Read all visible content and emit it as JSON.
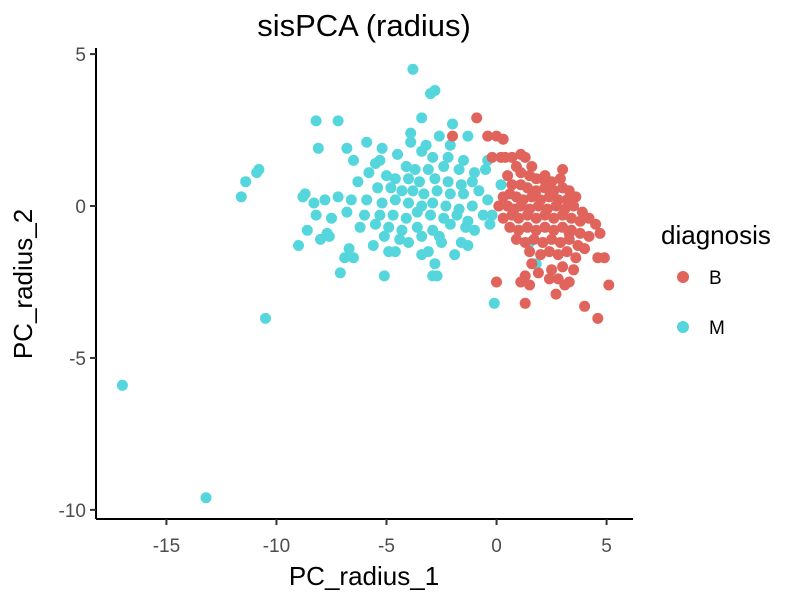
{
  "chart_data": {
    "type": "scatter",
    "title": "sisPCA (radius)",
    "xlabel": "PC_radius_1",
    "ylabel": "PC_radius_2",
    "xlim": [
      -18.2,
      6.2
    ],
    "ylim": [
      -10.3,
      5.2
    ],
    "x_ticks": [
      -15,
      -10,
      -5,
      0,
      5
    ],
    "y_ticks": [
      5,
      0,
      -5,
      -10
    ],
    "x_tick_labels": [
      "-15",
      "-10",
      "-5",
      "0",
      "5"
    ],
    "y_tick_labels": [
      "5",
      "0",
      "-5",
      "-10"
    ],
    "grid": false,
    "legend": {
      "title": "diagnosis",
      "position": "right"
    },
    "series": [
      {
        "name": "B",
        "color": "#E0635C",
        "points": [
          [
            -0.9,
            2.9
          ],
          [
            -2.0,
            2.3
          ],
          [
            0.0,
            2.3
          ],
          [
            -0.4,
            2.3
          ],
          [
            0.3,
            2.2
          ],
          [
            -0.2,
            1.6
          ],
          [
            0.2,
            1.6
          ],
          [
            0.4,
            1.6
          ],
          [
            0.7,
            1.6
          ],
          [
            1.3,
            1.6
          ],
          [
            1.1,
            1.7
          ],
          [
            0.9,
            1.3
          ],
          [
            1.6,
            1.3
          ],
          [
            3.0,
            1.2
          ],
          [
            1.1,
            1.1
          ],
          [
            1.5,
            1.0
          ],
          [
            1.8,
            0.9
          ],
          [
            2.1,
            0.9
          ],
          [
            2.5,
            0.8
          ],
          [
            0.5,
            1.0
          ],
          [
            0.7,
            0.7
          ],
          [
            1.1,
            0.7
          ],
          [
            1.4,
            0.6
          ],
          [
            1.8,
            0.5
          ],
          [
            2.2,
            0.6
          ],
          [
            2.6,
            0.5
          ],
          [
            3.0,
            0.6
          ],
          [
            3.3,
            0.5
          ],
          [
            0.3,
            0.3
          ],
          [
            0.6,
            0.4
          ],
          [
            0.9,
            0.3
          ],
          [
            1.2,
            0.2
          ],
          [
            1.6,
            0.3
          ],
          [
            2.0,
            0.2
          ],
          [
            2.4,
            0.3
          ],
          [
            2.8,
            0.2
          ],
          [
            3.2,
            0.2
          ],
          [
            3.6,
            0.3
          ],
          [
            0.1,
            0.0
          ],
          [
            0.5,
            0.0
          ],
          [
            0.8,
            -0.1
          ],
          [
            1.1,
            0.0
          ],
          [
            1.5,
            -0.1
          ],
          [
            1.9,
            0.0
          ],
          [
            2.3,
            -0.1
          ],
          [
            2.7,
            0.0
          ],
          [
            3.1,
            -0.1
          ],
          [
            3.5,
            0.0
          ],
          [
            3.9,
            -0.2
          ],
          [
            0.3,
            -0.4
          ],
          [
            0.7,
            -0.3
          ],
          [
            1.0,
            -0.4
          ],
          [
            1.4,
            -0.3
          ],
          [
            1.8,
            -0.4
          ],
          [
            2.2,
            -0.3
          ],
          [
            2.6,
            -0.4
          ],
          [
            3.0,
            -0.3
          ],
          [
            3.4,
            -0.4
          ],
          [
            3.8,
            -0.5
          ],
          [
            4.2,
            -0.4
          ],
          [
            0.6,
            -0.7
          ],
          [
            1.0,
            -0.8
          ],
          [
            1.4,
            -0.7
          ],
          [
            1.8,
            -0.8
          ],
          [
            2.2,
            -0.7
          ],
          [
            2.6,
            -0.8
          ],
          [
            3.0,
            -0.7
          ],
          [
            3.4,
            -0.8
          ],
          [
            3.8,
            -0.9
          ],
          [
            0.9,
            -1.1
          ],
          [
            1.3,
            -1.2
          ],
          [
            1.7,
            -1.1
          ],
          [
            2.1,
            -1.2
          ],
          [
            2.5,
            -1.1
          ],
          [
            2.9,
            -1.2
          ],
          [
            3.3,
            -1.1
          ],
          [
            3.7,
            -1.3
          ],
          [
            4.2,
            -1.0
          ],
          [
            4.5,
            -0.6
          ],
          [
            1.5,
            -1.5
          ],
          [
            2.0,
            -1.6
          ],
          [
            2.4,
            -1.5
          ],
          [
            2.8,
            -1.6
          ],
          [
            3.2,
            -1.5
          ],
          [
            3.6,
            -1.7
          ],
          [
            4.0,
            -1.4
          ],
          [
            4.6,
            -1.7
          ],
          [
            4.7,
            -0.9
          ],
          [
            4.9,
            -1.7
          ],
          [
            1.9,
            -2.2
          ],
          [
            2.5,
            -2.1
          ],
          [
            3.0,
            -2.0
          ],
          [
            3.5,
            -2.1
          ],
          [
            1.3,
            -2.3
          ],
          [
            1.1,
            -2.5
          ],
          [
            2.4,
            -2.4
          ],
          [
            2.8,
            -2.4
          ],
          [
            3.3,
            -2.5
          ],
          [
            0.0,
            -2.5
          ],
          [
            1.5,
            -2.6
          ],
          [
            2.7,
            -2.9
          ],
          [
            3.1,
            -2.6
          ],
          [
            5.1,
            -2.6
          ],
          [
            1.3,
            -3.2
          ],
          [
            4.0,
            -3.3
          ],
          [
            4.6,
            -3.7
          ],
          [
            2.2,
            1.0
          ],
          [
            2.9,
            0.9
          ],
          [
            3.3,
            -0.9
          ],
          [
            1.6,
            -1.9
          ]
        ]
      },
      {
        "name": "M",
        "color": "#55D6DC",
        "points": [
          [
            -3.8,
            4.5
          ],
          [
            -2.8,
            3.8
          ],
          [
            -3.0,
            3.7
          ],
          [
            -8.2,
            2.8
          ],
          [
            -7.2,
            2.8
          ],
          [
            -3.4,
            2.9
          ],
          [
            -2.0,
            2.7
          ],
          [
            -3.9,
            2.4
          ],
          [
            -5.9,
            2.1
          ],
          [
            -2.6,
            2.3
          ],
          [
            -1.3,
            2.3
          ],
          [
            -8.1,
            1.9
          ],
          [
            -6.8,
            1.9
          ],
          [
            -5.2,
            1.9
          ],
          [
            -4.5,
            1.7
          ],
          [
            -3.4,
            1.8
          ],
          [
            -2.9,
            1.6
          ],
          [
            -2.2,
            1.6
          ],
          [
            -1.5,
            1.5
          ],
          [
            -6.5,
            1.5
          ],
          [
            -5.5,
            1.4
          ],
          [
            -4.1,
            1.3
          ],
          [
            -3.7,
            1.2
          ],
          [
            -3.1,
            1.2
          ],
          [
            -2.4,
            1.3
          ],
          [
            -1.7,
            1.2
          ],
          [
            -1.0,
            1.1
          ],
          [
            -0.5,
            1.2
          ],
          [
            -10.8,
            1.2
          ],
          [
            -10.9,
            1.1
          ],
          [
            -5.8,
            1.1
          ],
          [
            -5.0,
            1.0
          ],
          [
            -4.6,
            0.9
          ],
          [
            -4.0,
            0.9
          ],
          [
            -3.5,
            0.8
          ],
          [
            -2.8,
            0.9
          ],
          [
            -2.2,
            0.8
          ],
          [
            -1.6,
            0.7
          ],
          [
            -1.1,
            0.8
          ],
          [
            -6.3,
            0.8
          ],
          [
            -5.4,
            0.6
          ],
          [
            -4.8,
            0.6
          ],
          [
            -4.3,
            0.5
          ],
          [
            -3.8,
            0.5
          ],
          [
            -3.3,
            0.4
          ],
          [
            -2.7,
            0.5
          ],
          [
            -2.1,
            0.4
          ],
          [
            -1.5,
            0.4
          ],
          [
            -0.8,
            0.5
          ],
          [
            -11.4,
            0.8
          ],
          [
            -8.7,
            0.4
          ],
          [
            -8.8,
            0.3
          ],
          [
            -7.2,
            0.3
          ],
          [
            -6.6,
            0.2
          ],
          [
            -5.9,
            0.2
          ],
          [
            -5.2,
            0.1
          ],
          [
            -4.6,
            0.2
          ],
          [
            -4.0,
            0.1
          ],
          [
            -3.4,
            0.0
          ],
          [
            -2.9,
            0.1
          ],
          [
            -2.3,
            0.0
          ],
          [
            -1.7,
            -0.1
          ],
          [
            -1.1,
            0.0
          ],
          [
            -0.4,
            0.2
          ],
          [
            -11.6,
            0.3
          ],
          [
            -8.3,
            0.1
          ],
          [
            -7.8,
            0.2
          ],
          [
            -6.8,
            -0.2
          ],
          [
            -6.0,
            -0.3
          ],
          [
            -5.3,
            -0.3
          ],
          [
            -4.7,
            -0.3
          ],
          [
            -4.1,
            -0.4
          ],
          [
            -3.6,
            -0.2
          ],
          [
            -3.0,
            -0.3
          ],
          [
            -2.4,
            -0.4
          ],
          [
            -1.8,
            -0.3
          ],
          [
            -1.3,
            -0.5
          ],
          [
            -0.6,
            -0.3
          ],
          [
            -8.2,
            -0.3
          ],
          [
            -7.5,
            -0.4
          ],
          [
            -6.2,
            -0.7
          ],
          [
            -5.5,
            -0.6
          ],
          [
            -4.9,
            -0.7
          ],
          [
            -4.3,
            -0.8
          ],
          [
            -3.6,
            -0.7
          ],
          [
            -2.9,
            -0.8
          ],
          [
            -2.1,
            -0.6
          ],
          [
            -1.4,
            -0.7
          ],
          [
            -0.3,
            -0.6
          ],
          [
            -8.6,
            -0.8
          ],
          [
            -7.7,
            -0.9
          ],
          [
            -5.1,
            -1.0
          ],
          [
            -4.4,
            -1.1
          ],
          [
            -3.4,
            -1.0
          ],
          [
            -2.6,
            -1.0
          ],
          [
            -8.0,
            -1.1
          ],
          [
            -7.6,
            -1.0
          ],
          [
            -4.0,
            -1.2
          ],
          [
            -1.3,
            -1.3
          ],
          [
            -0.2,
            -0.3
          ],
          [
            -9.0,
            -1.3
          ],
          [
            -6.7,
            -1.4
          ],
          [
            -5.6,
            -1.3
          ],
          [
            -4.6,
            -1.5
          ],
          [
            -3.1,
            -1.5
          ],
          [
            -1.6,
            -1.2
          ],
          [
            -6.9,
            -1.7
          ],
          [
            -6.5,
            -1.7
          ],
          [
            -4.9,
            -1.5
          ],
          [
            -3.4,
            -1.6
          ],
          [
            -1.9,
            -1.6
          ],
          [
            -7.1,
            -2.2
          ],
          [
            -5.1,
            -2.3
          ],
          [
            -2.8,
            -1.9
          ],
          [
            -2.9,
            -2.3
          ],
          [
            -2.7,
            -2.3
          ],
          [
            -0.1,
            -3.2
          ],
          [
            -10.5,
            -3.7
          ],
          [
            -17.0,
            -5.9
          ],
          [
            -13.2,
            -9.6
          ],
          [
            1.8,
            -1.9
          ],
          [
            1.5,
            -1.2
          ],
          [
            -0.4,
            1.5
          ],
          [
            0.2,
            0.7
          ],
          [
            -2.5,
            -1.2
          ],
          [
            -1.0,
            -0.8
          ],
          [
            -3.9,
            2.1
          ],
          [
            -5.3,
            1.5
          ],
          [
            -3.2,
            2.0
          ],
          [
            -2.1,
            2.0
          ]
        ]
      }
    ]
  }
}
